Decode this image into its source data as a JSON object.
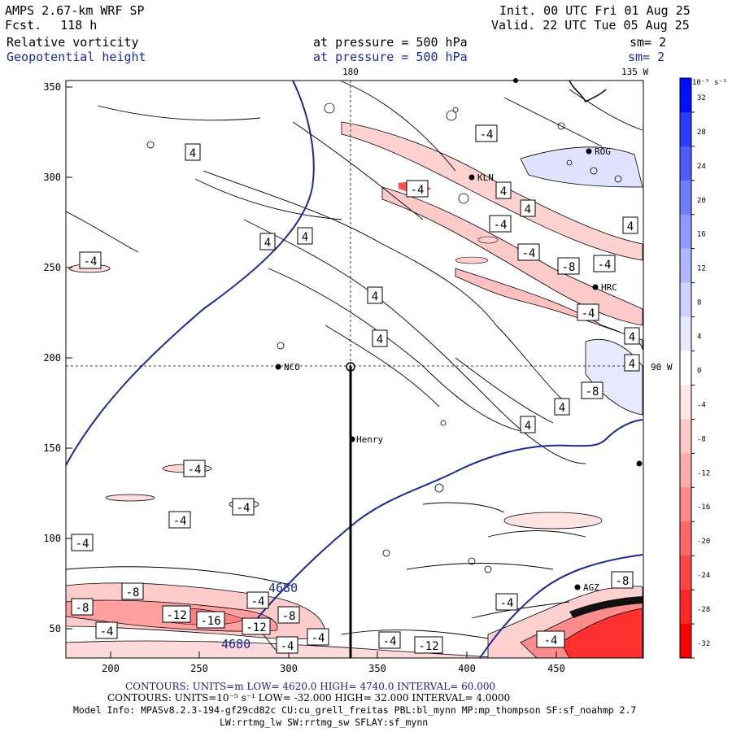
{
  "header": {
    "model": "AMPS 2.67-km WRF SP",
    "fcst_label": "Fcst.",
    "fcst_value": "118 h",
    "init": "Init. 00 UTC Fri 01 Aug 25",
    "valid": "Valid. 22 UTC Tue 05 Aug 25",
    "field1": {
      "name": "Relative vorticity",
      "level": "at pressure =  500 hPa",
      "sm": "sm= 2"
    },
    "field2": {
      "name": "Geopotential height",
      "level": "at pressure =  500 hPa",
      "sm": "sm= 2"
    }
  },
  "map": {
    "x_ticks": [
      "200",
      "250",
      "300",
      "350",
      "400",
      "450"
    ],
    "y_ticks": [
      "350",
      "300",
      "250",
      "200",
      "150",
      "100",
      "50"
    ],
    "lon_labels": {
      "top_180": "180",
      "top_135w": "135 W",
      "right_90w": "90 W"
    },
    "stations": [
      {
        "id": "NCO",
        "label": "NCO"
      },
      {
        "id": "KLN",
        "label": "KLN"
      },
      {
        "id": "HRC",
        "label": "HRC"
      },
      {
        "id": "Henry",
        "label": "Henry"
      },
      {
        "id": "AGZ",
        "label": "AGZ"
      },
      {
        "id": "ROG",
        "label": "ROG"
      }
    ],
    "height_contours": [
      "4680",
      "4680"
    ],
    "vorticity_labels": [
      "4",
      "4",
      "4",
      "4",
      "4",
      "4",
      "4",
      "4",
      "4",
      "4",
      "4",
      "4",
      "-4",
      "-4",
      "-4",
      "-4",
      "-4",
      "-4",
      "-4",
      "-4",
      "-4",
      "-4",
      "-4",
      "-4",
      "-4",
      "-4",
      "-4",
      "-4",
      "-8",
      "-8",
      "-8",
      "-8",
      "-8",
      "-8",
      "-12",
      "-12",
      "-12",
      "-16",
      "-4",
      "-4"
    ]
  },
  "colorbar": {
    "unit": "10⁻⁵ s⁻¹",
    "ticks": [
      "32",
      "28",
      "24",
      "20",
      "16",
      "12",
      "8",
      "4",
      "0",
      "-4",
      "-8",
      "-12",
      "-16",
      "-20",
      "-24",
      "-28",
      "-32"
    ],
    "colors": [
      "#0010ff",
      "#2a3cff",
      "#4e5cff",
      "#6f7cff",
      "#8f99ff",
      "#aeb6ff",
      "#cdd2ff",
      "#e8ebff",
      "#ffffff",
      "#ffe6e6",
      "#ffc9c9",
      "#ffa9a9",
      "#ff8888",
      "#ff6767",
      "#ff4646",
      "#ff2626",
      "#ff0000"
    ]
  },
  "footer": {
    "line1": "CONTOURS:  UNITS=m  LOW=  4620.0        HIGH=  4740.0        INTERVAL=   60.000",
    "line2": "CONTOURS:  UNITS=10⁻⁵ s⁻¹  LOW=  -32.000        HIGH=  32.000       INTERVAL=   4.0000",
    "line3": "Model Info: MPASv8.2.3-194-gf29cd82c CU:cu_grell_freitas PBL:bl_mynn MP:mp_thompson SF:sf_noahmp 2.7",
    "line4": "LW:rrtmg_lw SW:rrtmg_sw SFLAY:sf_mynn"
  }
}
